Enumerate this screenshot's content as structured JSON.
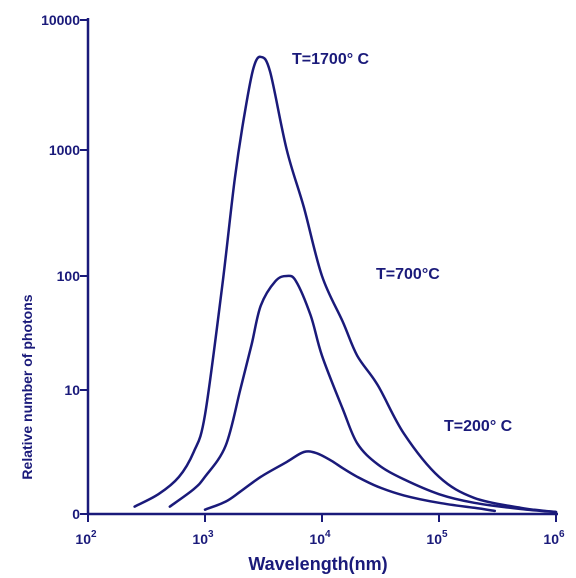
{
  "chart_data": {
    "type": "line",
    "xlabel": "Wavelength(nm)",
    "ylabel": "Relative number of photons",
    "x_scale": "log",
    "x_ticks": [
      {
        "value": 100,
        "base": "10",
        "exp": "2"
      },
      {
        "value": 1000,
        "base": "10",
        "exp": "3"
      },
      {
        "value": 10000,
        "base": "10",
        "exp": "4"
      },
      {
        "value": 100000,
        "base": "10",
        "exp": "5"
      },
      {
        "value": 1000000,
        "base": "10",
        "exp": "6"
      }
    ],
    "y_ticks": [
      "0",
      "10",
      "100",
      "1000",
      "10000"
    ],
    "xlim": [
      100,
      1000000
    ],
    "colors": {
      "axis": "#1a1a7a",
      "line": "#1a1a7a"
    },
    "series": [
      {
        "name": "T=1700° C",
        "points": [
          [
            250,
            0.6
          ],
          [
            400,
            1.6
          ],
          [
            600,
            3.0
          ],
          [
            800,
            5.0
          ],
          [
            1000,
            8.0
          ],
          [
            1400,
            80
          ],
          [
            1800,
            600
          ],
          [
            2200,
            2000
          ],
          [
            2600,
            4300
          ],
          [
            3000,
            5200
          ],
          [
            3600,
            4000
          ],
          [
            5000,
            1000
          ],
          [
            7000,
            350
          ],
          [
            10000,
            100
          ],
          [
            15000,
            40
          ],
          [
            20000,
            20
          ],
          [
            30000,
            11
          ],
          [
            50000,
            6.5
          ],
          [
            100000,
            3.0
          ],
          [
            200000,
            1.3
          ],
          [
            500000,
            0.5
          ],
          [
            1000000,
            0.12
          ]
        ]
      },
      {
        "name": "T=700°C",
        "points": [
          [
            500,
            0.6
          ],
          [
            800,
            2.0
          ],
          [
            1000,
            3.0
          ],
          [
            1500,
            5.5
          ],
          [
            2000,
            10
          ],
          [
            2500,
            25
          ],
          [
            3000,
            55
          ],
          [
            4000,
            90
          ],
          [
            5000,
            100
          ],
          [
            6000,
            90
          ],
          [
            8000,
            45
          ],
          [
            10000,
            20
          ],
          [
            15000,
            8.5
          ],
          [
            20000,
            5.7
          ],
          [
            30000,
            4.0
          ],
          [
            50000,
            2.8
          ],
          [
            100000,
            1.6
          ],
          [
            200000,
            0.9
          ],
          [
            500000,
            0.4
          ],
          [
            1000000,
            0.15
          ]
        ]
      },
      {
        "name": "T=200° C",
        "points": [
          [
            1000,
            0.35
          ],
          [
            1500,
            1.0
          ],
          [
            2000,
            1.8
          ],
          [
            3000,
            3.0
          ],
          [
            5000,
            4.2
          ],
          [
            7000,
            5.0
          ],
          [
            9000,
            4.9
          ],
          [
            12000,
            4.3
          ],
          [
            15000,
            3.7
          ],
          [
            20000,
            3.0
          ],
          [
            30000,
            2.2
          ],
          [
            50000,
            1.5
          ],
          [
            100000,
            0.9
          ],
          [
            200000,
            0.5
          ],
          [
            300000,
            0.25
          ]
        ]
      }
    ]
  }
}
